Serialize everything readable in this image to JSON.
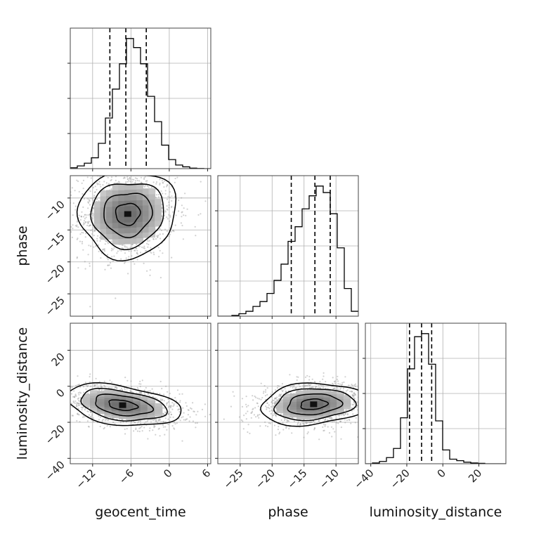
{
  "chart_data": {
    "type": "corner",
    "parameters": [
      "geocent_time",
      "phase",
      "luminosity_distance"
    ],
    "ranges": {
      "geocent_time": [
        -15.5,
        6.5
      ],
      "phase": [
        -28.5,
        -6.5
      ],
      "luminosity_distance": [
        -43,
        35
      ]
    },
    "ticks": {
      "geocent_time": [
        -12,
        -6,
        0,
        6
      ],
      "phase_x": [
        -25,
        -20,
        -15,
        -10
      ],
      "phase_y": [
        -10,
        -15,
        -20,
        -25
      ],
      "luminosity_distance_x": [
        -40,
        -20,
        0,
        20
      ],
      "luminosity_distance_y": [
        20,
        0,
        -20,
        -40
      ]
    },
    "tick_labels": {
      "geocent_time": [
        "−12",
        "−6",
        "0",
        "6"
      ],
      "phase_x": [
        "−25",
        "−20",
        "−15",
        "−10"
      ],
      "phase_y": [
        "−10",
        "−15",
        "−20",
        "−25"
      ],
      "luminosity_distance_x": [
        "−40",
        "−20",
        "0",
        "20"
      ],
      "luminosity_distance_y": [
        "20",
        "0",
        "−20",
        "−40"
      ]
    },
    "axis_labels": {
      "bottom": [
        "geocent_time",
        "phase",
        "luminosity_distance"
      ],
      "left": [
        "phase",
        "luminosity_distance"
      ]
    },
    "histograms": [
      {
        "parameter": "geocent_time",
        "bin_edges": [
          -15.5,
          -14.4,
          -13.3,
          -12.2,
          -11.1,
          -10.0,
          -8.9,
          -7.8,
          -6.7,
          -5.6,
          -4.5,
          -3.4,
          -2.3,
          -1.2,
          -0.1,
          1.0,
          2.1,
          3.2,
          4.3,
          5.4,
          6.5
        ],
        "counts": [
          0.5,
          1.5,
          3,
          6,
          14,
          28,
          44,
          58,
          72,
          67,
          58,
          40,
          26,
          13,
          5,
          2,
          1,
          0.3,
          0.1,
          0
        ],
        "quantiles": [
          -9.3,
          -6.8,
          -3.6
        ]
      },
      {
        "parameter": "phase",
        "bin_edges": [
          -28.5,
          -27.4,
          -26.3,
          -25.2,
          -24.1,
          -23.0,
          -21.9,
          -20.8,
          -19.7,
          -18.6,
          -17.5,
          -16.4,
          -15.3,
          -14.2,
          -13.1,
          -12.0,
          -10.9,
          -9.8,
          -8.7,
          -7.6,
          -6.5
        ],
        "counts": [
          0,
          0,
          0.5,
          1.5,
          3,
          6,
          9,
          14,
          22,
          32,
          46,
          55,
          66,
          74,
          80,
          76,
          63,
          42,
          17,
          3
        ],
        "quantiles": [
          -17.0,
          -13.3,
          -10.9
        ]
      },
      {
        "parameter": "luminosity_distance",
        "bin_edges": [
          -43.0,
          -39.1,
          -35.2,
          -31.3,
          -27.4,
          -23.5,
          -19.6,
          -15.7,
          -11.8,
          -7.9,
          -4.0,
          -0.1,
          3.8,
          7.7,
          11.6,
          15.5,
          19.4,
          23.3,
          27.2,
          31.1,
          35.0
        ],
        "counts": [
          0,
          0.5,
          1.5,
          4,
          10,
          30,
          62,
          83,
          85,
          65,
          28,
          9,
          3,
          2,
          1,
          0.5,
          0.3,
          0,
          0,
          0
        ],
        "quantiles": [
          -18.5,
          -11.8,
          -6.2
        ]
      }
    ],
    "scatter_2d": [
      {
        "x": "geocent_time",
        "y": "phase",
        "center": [
          -6.5,
          -12.5
        ],
        "sigma": [
          3.8,
          3.4
        ],
        "correlation": 0.05,
        "contour_levels": 4
      },
      {
        "x": "geocent_time",
        "y": "luminosity_distance",
        "center": [
          -7.3,
          -10.5
        ],
        "sigma": [
          4.5,
          5.8
        ],
        "correlation": -0.35,
        "contour_levels": 4
      },
      {
        "x": "phase",
        "y": "luminosity_distance",
        "center": [
          -13.5,
          -10.0
        ],
        "sigma": [
          4.2,
          5.8
        ],
        "correlation": 0.15,
        "contour_levels": 4
      }
    ],
    "grid": true
  }
}
